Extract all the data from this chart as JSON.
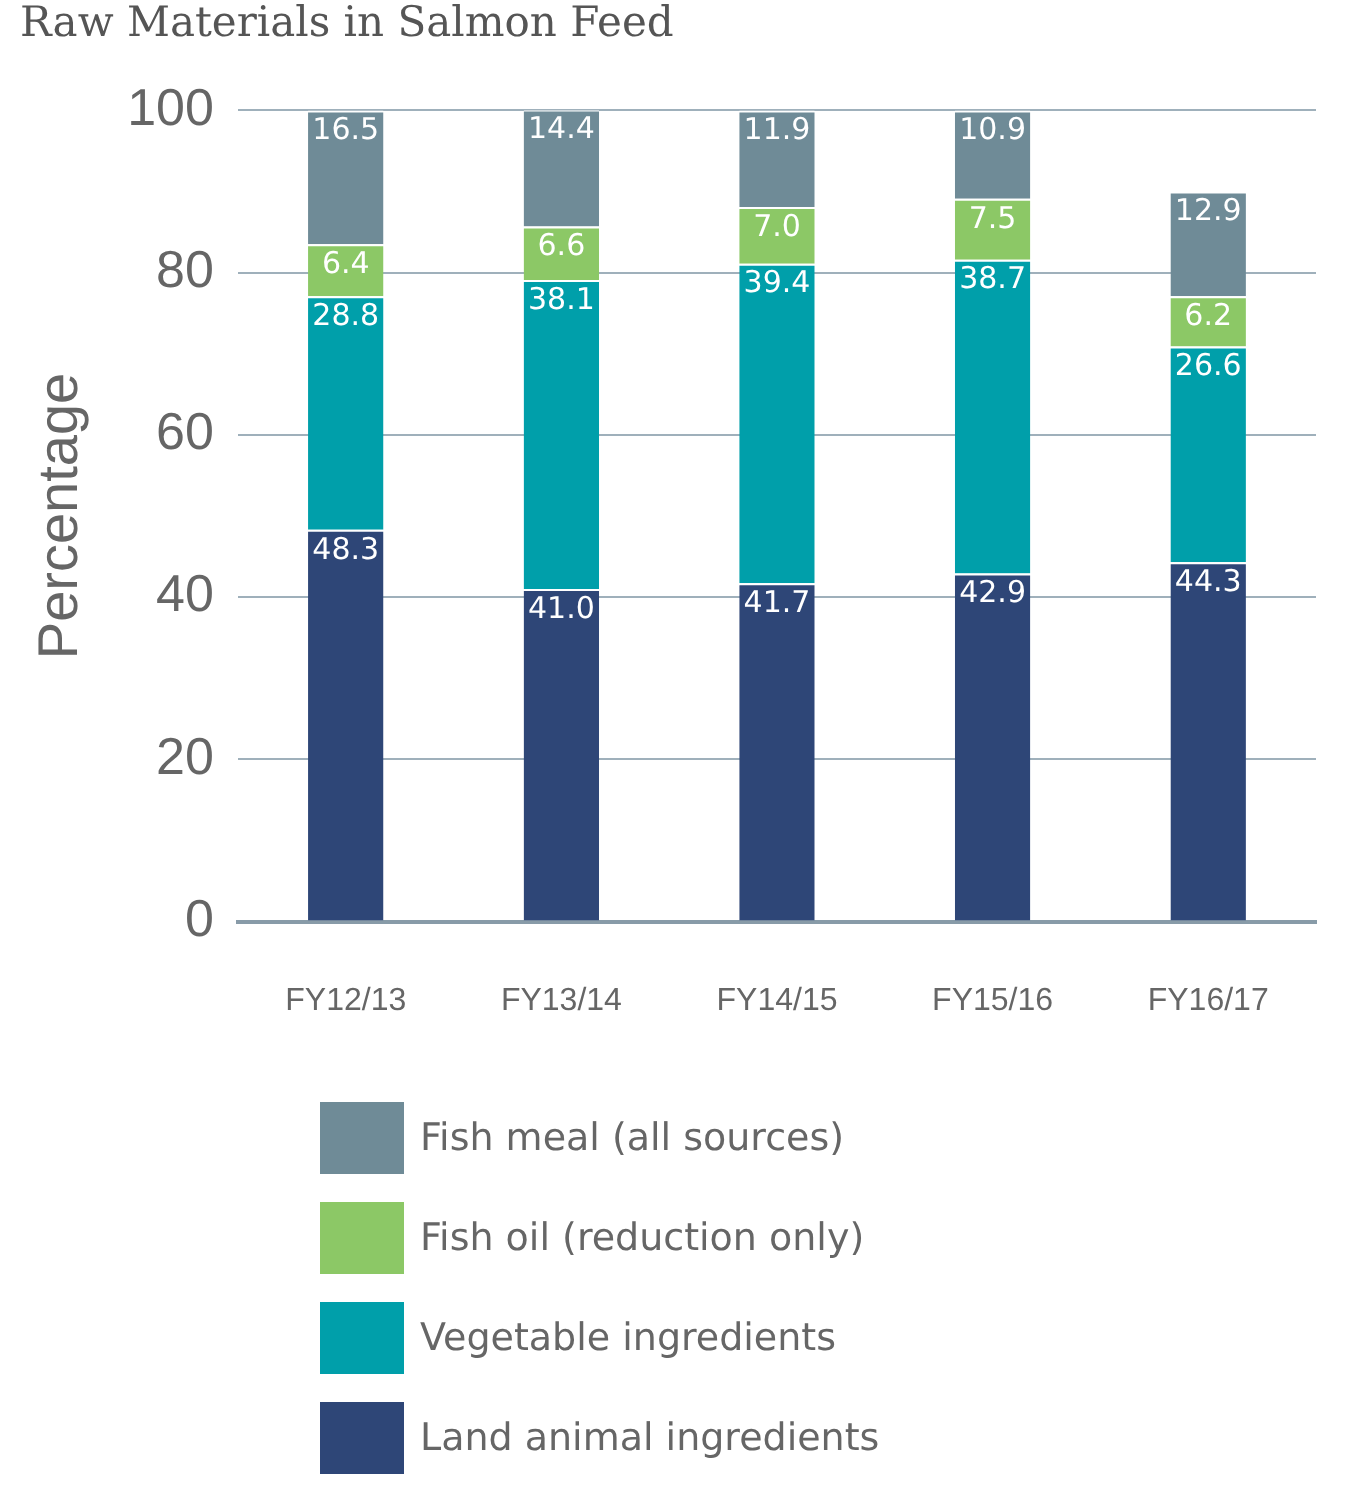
{
  "chart_data": {
    "type": "bar",
    "title": "Raw Materials in Salmon Feed",
    "ylabel": "Percentage",
    "categories": [
      "FY12/13",
      "FY13/14",
      "FY14/15",
      "FY15/16",
      "FY16/17"
    ],
    "series": [
      {
        "name": "Land animal ingredients",
        "color": "#2e4677",
        "values": [
          48.3,
          41.0,
          41.7,
          42.9,
          44.3
        ],
        "value_labels": [
          "48.3",
          "41.0",
          "41.7",
          "42.9",
          "44.3"
        ]
      },
      {
        "name": "Vegetable ingredients",
        "color": "#009faa",
        "values": [
          28.8,
          38.1,
          39.4,
          38.7,
          26.6
        ],
        "value_labels": [
          "28.8",
          "38.1",
          "39.4",
          "38.7",
          "26.6"
        ]
      },
      {
        "name": "Fish oil (reduction only)",
        "color": "#8cc866",
        "values": [
          6.4,
          6.6,
          7.0,
          7.5,
          6.2
        ],
        "value_labels": [
          "6.4",
          "6.6",
          "7.0",
          "7.5",
          "6.2"
        ]
      },
      {
        "name": "Fish meal (all sources)",
        "color": "#6f8b97",
        "values": [
          16.5,
          14.4,
          11.9,
          10.9,
          12.9
        ],
        "value_labels": [
          "16.5",
          "14.4",
          "11.9",
          "10.9",
          "12.9"
        ]
      }
    ],
    "stacked": true,
    "ylim": [
      0,
      100
    ],
    "yticks": [
      0,
      20,
      40,
      60,
      80,
      100
    ],
    "grid": "y",
    "legend": "bottom"
  }
}
